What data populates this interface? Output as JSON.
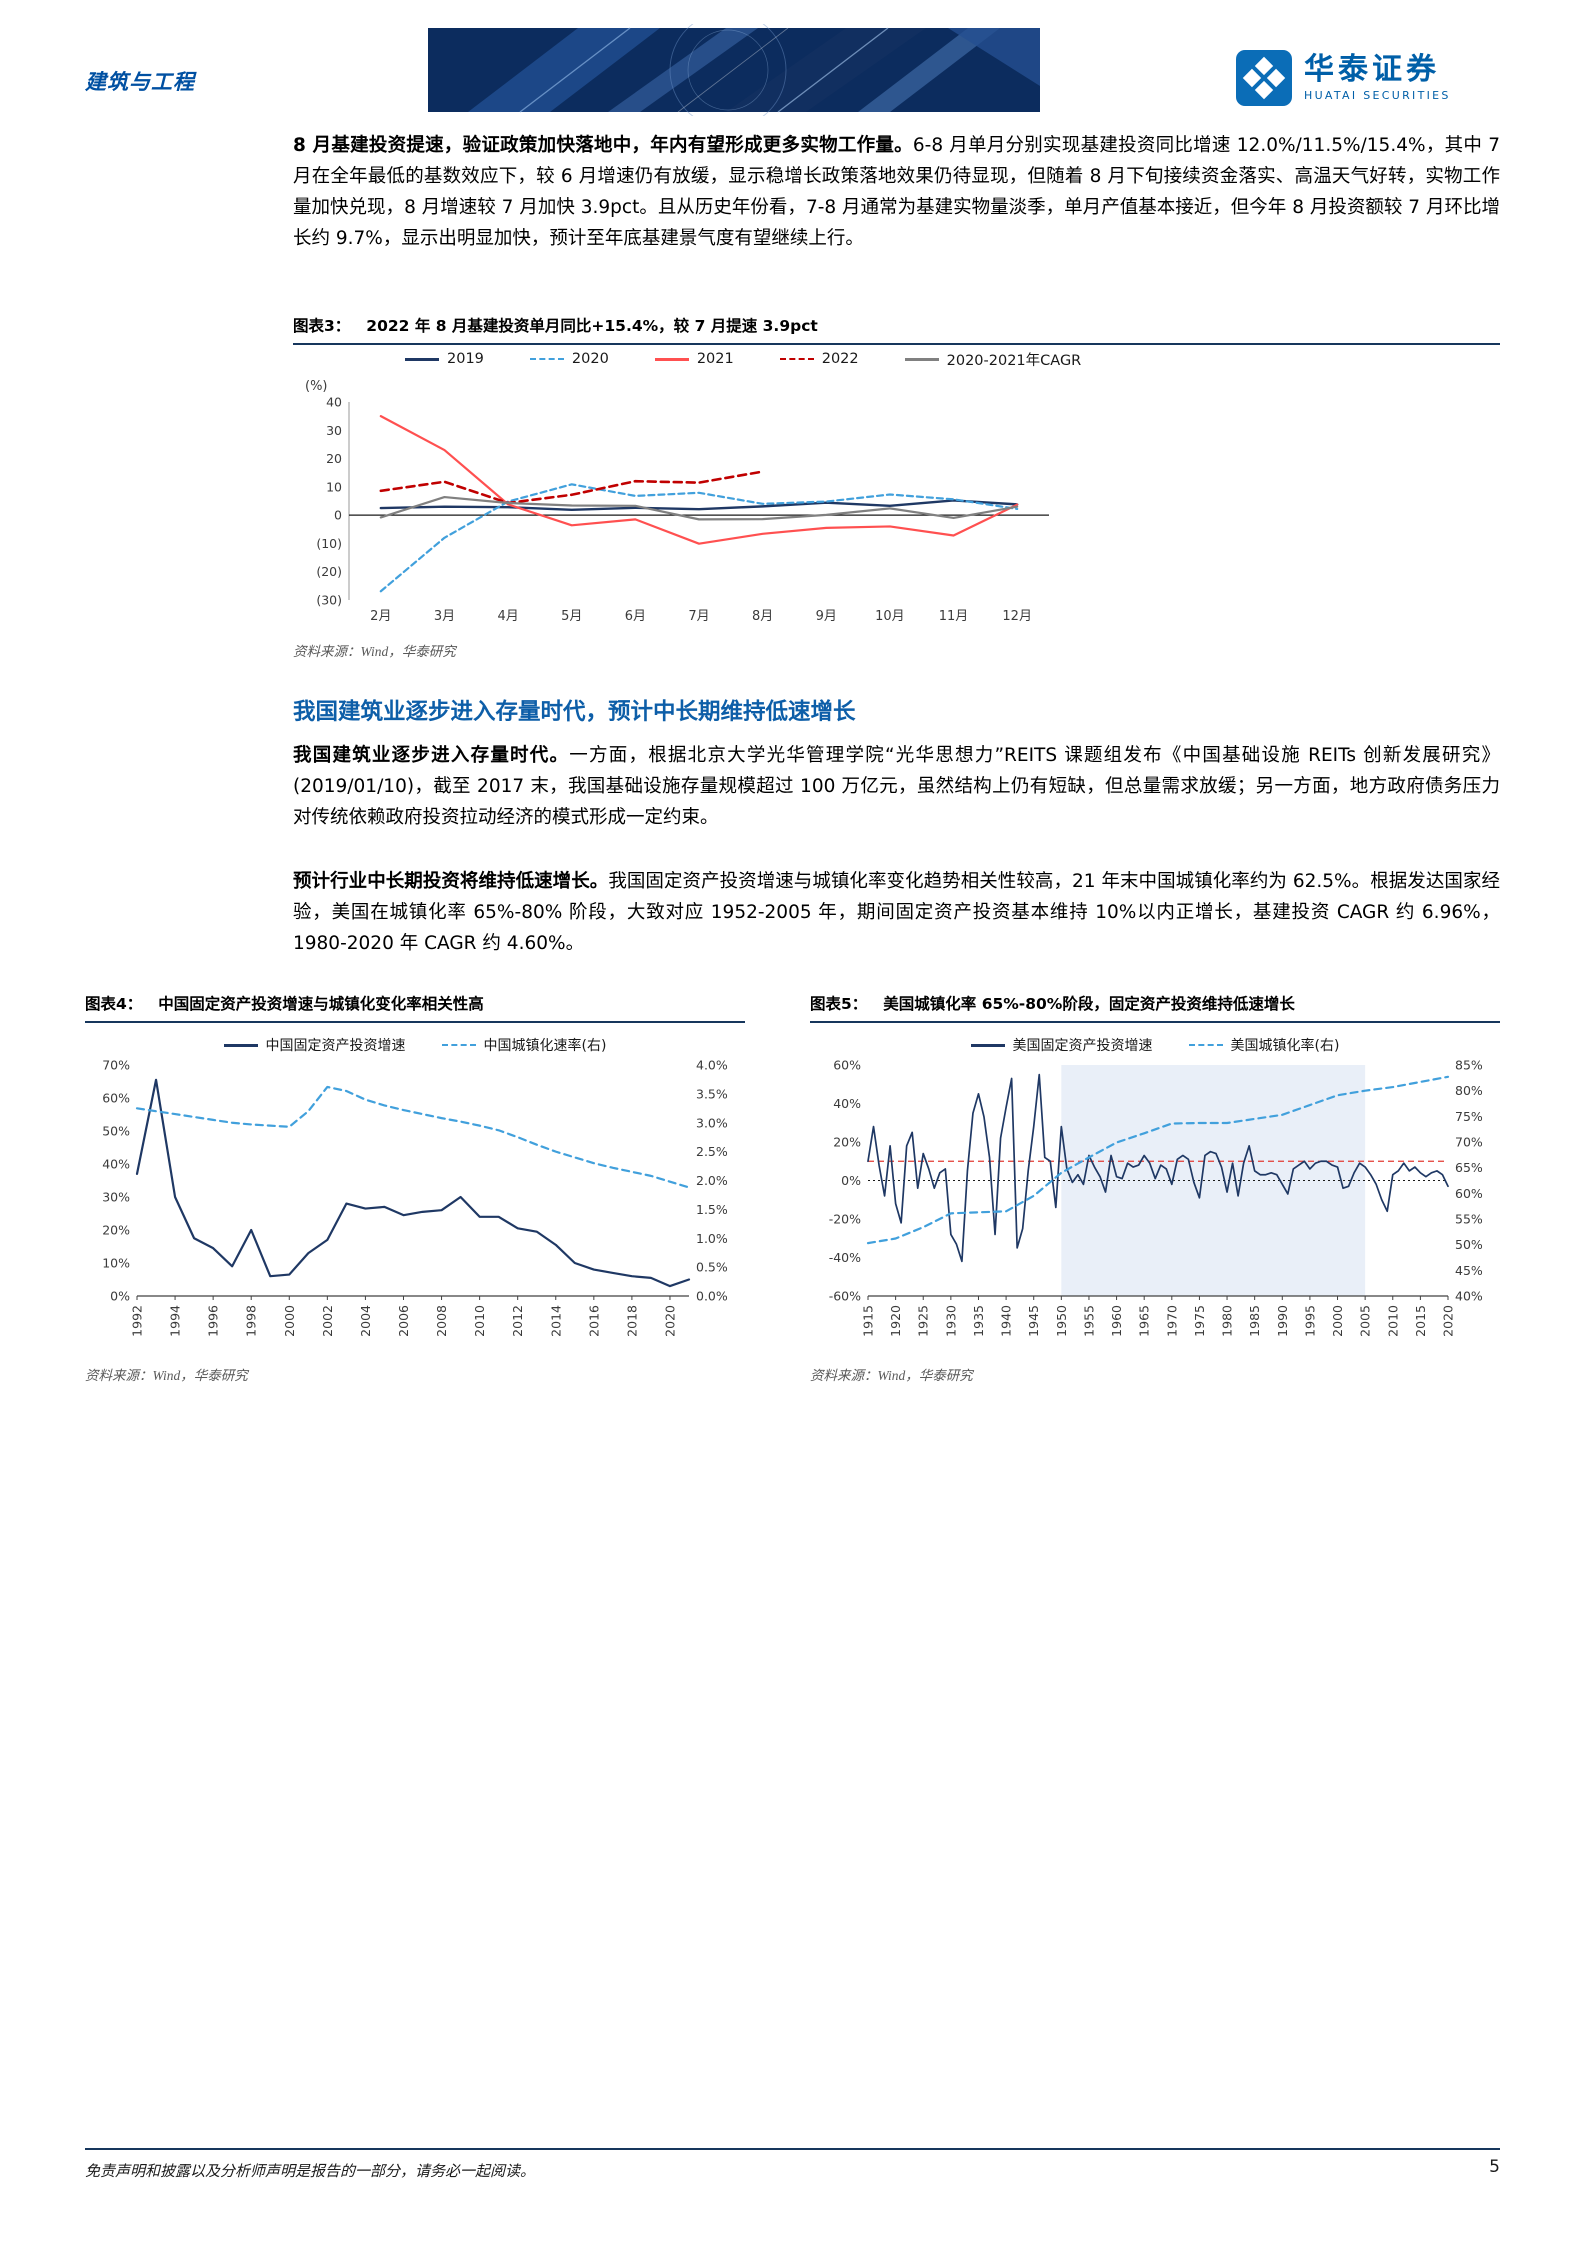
{
  "palette": {
    "brand_blue": "#005FA8",
    "heading_blue": "#0D5EA8",
    "rule_navy": "#16365C",
    "banner_navy": "#0C2C5E",
    "source_gray": "#595959"
  },
  "header": {
    "category": "建筑与工程",
    "brand": {
      "name_cn": "华泰证券",
      "name_en": "HUATAI SECURITIES"
    }
  },
  "paragraphs": {
    "p1_bold": "8 月基建投资提速，验证政策加快落地中，年内有望形成更多实物工作量。",
    "p1_rest": "6-8 月单月分别实现基建投资同比增速 12.0%/11.5%/15.4%，其中 7 月在全年最低的基数效应下，较 6 月增速仍有放缓，显示稳增长政策落地效果仍待显现，但随着 8 月下旬接续资金落实、高温天气好转，实物工作量加快兑现，8 月增速较 7 月加快 3.9pct。且从历史年份看，7-8 月通常为基建实物量淡季，单月产值基本接近，但今年 8 月投资额较 7 月环比增长约 9.7%，显示出明显加快，预计至年底基建景气度有望继续上行。",
    "section_heading": "我国建筑业逐步进入存量时代，预计中长期维持低速增长",
    "p2_bold": "我国建筑业逐步进入存量时代。",
    "p2_rest": "一方面，根据北京大学光华管理学院“光华思想力”REITS 课题组发布《中国基础设施 REITs 创新发展研究》(2019/01/10)，截至 2017 末，我国基础设施存量规模超过 100 万亿元，虽然结构上仍有短缺，但总量需求放缓；另一方面，地方政府债务压力对传统依赖政府投资拉动经济的模式形成一定约束。",
    "p3_bold": "预计行业中长期投资将维持低速增长。",
    "p3_rest": "我国固定资产投资增速与城镇化率变化趋势相关性较高，21 年末中国城镇化率约为 62.5%。根据发达国家经验，美国在城镇化率 65%-80% 阶段，大致对应 1952-2005 年，期间固定资产投资基本维持 10%以内正增长，基建投资 CAGR 约 6.96%，1980-2020 年 CAGR 约 4.60%。"
  },
  "figure3": {
    "label": "图表3：",
    "title": "2022 年 8 月基建投资单月同比+15.4%，较 7 月提速 3.9pct",
    "source": "资料来源：Wind，华泰研究"
  },
  "figure4": {
    "label": "图表4：",
    "title": "中国固定资产投资增速与城镇化变化率相关性高",
    "source": "资料来源：Wind，华泰研究"
  },
  "figure5": {
    "label": "图表5：",
    "title": "美国城镇化率 65%-80%阶段，固定资产投资维持低速增长",
    "source": "资料来源：Wind，华泰研究"
  },
  "footer": {
    "disclaimer": "免责声明和披露以及分析师声明是报告的一部分，请务必一起阅读。",
    "page": "5"
  },
  "chart_data": [
    {
      "id": "figure3-chart",
      "type": "line",
      "title": "2022年8月基建投资单月同比+15.4%，较7月提速3.9pct",
      "y_axis_label": "(%)",
      "legend_position": "top",
      "left_axis": {
        "min": -30,
        "max": 40,
        "ticks": [
          {
            "v": 40,
            "label": "40"
          },
          {
            "v": 30,
            "label": "30"
          },
          {
            "v": 20,
            "label": "20"
          },
          {
            "v": 10,
            "label": "10"
          },
          {
            "v": 0,
            "label": "0"
          },
          {
            "v": -10,
            "label": "(10)"
          },
          {
            "v": -20,
            "label": "(20)"
          },
          {
            "v": -30,
            "label": "(30)"
          }
        ]
      },
      "categories": [
        "2月",
        "3月",
        "4月",
        "5月",
        "6月",
        "7月",
        "8月",
        "9月",
        "10月",
        "11月",
        "12月"
      ],
      "series": [
        {
          "name": "2019",
          "color": "#1F3864",
          "dash": "solid",
          "width": 2.4,
          "values": [
            2.5,
            3.0,
            2.8,
            1.9,
            2.6,
            2.1,
            3.1,
            4.4,
            3.3,
            5.2,
            3.8
          ]
        },
        {
          "name": "2020",
          "color": "#41A0DC",
          "dash": "dashed",
          "dash_pattern": "6 4",
          "width": 2.2,
          "values": [
            -26.9,
            -8.0,
            4.8,
            10.9,
            6.8,
            7.9,
            4.0,
            4.8,
            7.3,
            5.6,
            2.2
          ]
        },
        {
          "name": "2021",
          "color": "#FF5050",
          "dash": "solid",
          "width": 2.2,
          "values": [
            35.0,
            23.0,
            3.8,
            -3.6,
            -1.5,
            -10.1,
            -6.6,
            -4.5,
            -4.0,
            -7.2,
            3.7
          ]
        },
        {
          "name": "2022",
          "color": "#C00000",
          "dash": "dashed",
          "dash_pattern": "8 5",
          "width": 2.6,
          "values": [
            8.6,
            11.8,
            4.3,
            7.2,
            12.0,
            11.5,
            15.4,
            null,
            null,
            null,
            null
          ]
        },
        {
          "name": "2020-2021年CAGR",
          "color": "#808080",
          "dash": "solid",
          "width": 2.2,
          "values": [
            -0.8,
            6.4,
            4.3,
            3.4,
            3.3,
            -1.5,
            -1.4,
            0.1,
            2.4,
            -1.0,
            3.0
          ]
        }
      ]
    },
    {
      "id": "figure4-chart",
      "type": "line",
      "x_min": 1992,
      "x_max": 2021,
      "x_ticks": [
        1992,
        1994,
        1996,
        1998,
        2000,
        2002,
        2004,
        2006,
        2008,
        2010,
        2012,
        2014,
        2016,
        2018,
        2020
      ],
      "left_axis": {
        "min": 0,
        "max": 70,
        "ticks": [
          {
            "v": 0,
            "label": "0%"
          },
          {
            "v": 10,
            "label": "10%"
          },
          {
            "v": 20,
            "label": "20%"
          },
          {
            "v": 30,
            "label": "30%"
          },
          {
            "v": 40,
            "label": "40%"
          },
          {
            "v": 50,
            "label": "50%"
          },
          {
            "v": 60,
            "label": "60%"
          },
          {
            "v": 70,
            "label": "70%"
          }
        ]
      },
      "right_axis": {
        "min": 0,
        "max": 4,
        "ticks": [
          {
            "v": 0,
            "label": "0.0%"
          },
          {
            "v": 0.5,
            "label": "0.5%"
          },
          {
            "v": 1,
            "label": "1.0%"
          },
          {
            "v": 1.5,
            "label": "1.5%"
          },
          {
            "v": 2,
            "label": "2.0%"
          },
          {
            "v": 2.5,
            "label": "2.5%"
          },
          {
            "v": 3,
            "label": "3.0%"
          },
          {
            "v": 3.5,
            "label": "3.5%"
          },
          {
            "v": 4,
            "label": "4.0%"
          }
        ]
      },
      "series": [
        {
          "name": "中国固定资产投资增速",
          "axis": "left",
          "color": "#1F3864",
          "dash": "solid",
          "width": 2.2,
          "values": [
            37,
            65.5,
            30,
            17.5,
            14.5,
            9,
            20,
            6,
            6.5,
            13,
            17,
            28,
            26.5,
            27,
            24.5,
            25.5,
            26,
            30,
            24,
            24,
            20.5,
            19.5,
            15.5,
            10,
            8,
            7,
            6,
            5.5,
            3,
            5
          ]
        },
        {
          "name": "中国城镇化速率(右)",
          "axis": "right",
          "color": "#41A0DC",
          "dash": "dashed",
          "dash_pattern": "7 5",
          "width": 2.2,
          "values": [
            3.25,
            3.2,
            3.15,
            3.1,
            3.05,
            3.0,
            2.97,
            2.95,
            2.93,
            3.2,
            3.62,
            3.55,
            3.4,
            3.3,
            3.22,
            3.15,
            3.08,
            3.02,
            2.95,
            2.87,
            2.75,
            2.62,
            2.5,
            2.4,
            2.3,
            2.22,
            2.15,
            2.08,
            1.98,
            1.88
          ]
        }
      ]
    },
    {
      "id": "figure5-chart",
      "type": "line",
      "x_min": 1915,
      "x_max": 2020,
      "x_ticks": [
        1915,
        1920,
        1925,
        1930,
        1935,
        1940,
        1945,
        1950,
        1955,
        1960,
        1965,
        1970,
        1975,
        1980,
        1985,
        1990,
        1995,
        2000,
        2005,
        2010,
        2015,
        2020
      ],
      "highlight_region": {
        "from": 1950,
        "to": 2005,
        "color": "#E9EFF8"
      },
      "reference_line": {
        "y": 10,
        "color": "#E23B33",
        "style": "dashed"
      },
      "left_axis": {
        "min": -60,
        "max": 60,
        "ticks": [
          {
            "v": -60,
            "label": "-60%"
          },
          {
            "v": -40,
            "label": "-40%"
          },
          {
            "v": -20,
            "label": "-20%"
          },
          {
            "v": 0,
            "label": "0%"
          },
          {
            "v": 20,
            "label": "20%"
          },
          {
            "v": 40,
            "label": "40%"
          },
          {
            "v": 60,
            "label": "60%"
          }
        ]
      },
      "right_axis": {
        "min": 40,
        "max": 85,
        "ticks": [
          {
            "v": 40,
            "label": "40%"
          },
          {
            "v": 45,
            "label": "45%"
          },
          {
            "v": 50,
            "label": "50%"
          },
          {
            "v": 55,
            "label": "55%"
          },
          {
            "v": 60,
            "label": "60%"
          },
          {
            "v": 65,
            "label": "65%"
          },
          {
            "v": 70,
            "label": "70%"
          },
          {
            "v": 75,
            "label": "75%"
          },
          {
            "v": 80,
            "label": "80%"
          },
          {
            "v": 85,
            "label": "85%"
          }
        ]
      },
      "series": [
        {
          "name": "美国固定资产投资增速",
          "axis": "left",
          "color": "#1F3864",
          "dash": "solid",
          "width": 1.7,
          "values": [
            10,
            28,
            8,
            -8,
            18,
            -12,
            -22,
            18,
            25,
            -4,
            14,
            6,
            -4,
            4,
            6,
            -28,
            -33,
            -42,
            5,
            35,
            45,
            33,
            12,
            -28,
            22,
            38,
            53,
            -35,
            -25,
            5,
            28,
            55,
            12,
            10,
            -14,
            28,
            6,
            -1,
            3,
            -2,
            13,
            7,
            2,
            -6,
            13,
            2,
            1,
            9,
            7,
            8,
            13,
            9,
            1,
            8,
            6,
            -2,
            11,
            13,
            11,
            -1,
            -9,
            13,
            15,
            14,
            7,
            -6,
            9,
            -8,
            9,
            18,
            5,
            3,
            3,
            4,
            3,
            -2,
            -7,
            6,
            8,
            10,
            6,
            9,
            10,
            10,
            8,
            7,
            -4,
            -3,
            4,
            9,
            7,
            3,
            -2,
            -10,
            -16,
            3,
            5,
            9,
            5,
            7,
            4,
            2,
            4,
            5,
            3,
            -3
          ]
        },
        {
          "name": "美国城镇化率(右)",
          "axis": "right",
          "color": "#41A0DC",
          "dash": "dashed",
          "dash_pattern": "7 5",
          "width": 2.2,
          "points": [
            [
              1915,
              50.3
            ],
            [
              1920,
              51.2
            ],
            [
              1925,
              53.4
            ],
            [
              1930,
              56.1
            ],
            [
              1935,
              56.3
            ],
            [
              1940,
              56.5
            ],
            [
              1945,
              59.5
            ],
            [
              1950,
              64.0
            ],
            [
              1955,
              67.0
            ],
            [
              1960,
              69.9
            ],
            [
              1965,
              71.7
            ],
            [
              1970,
              73.6
            ],
            [
              1975,
              73.7
            ],
            [
              1980,
              73.7
            ],
            [
              1985,
              74.5
            ],
            [
              1990,
              75.3
            ],
            [
              1995,
              77.2
            ],
            [
              2000,
              79.1
            ],
            [
              2005,
              80.0
            ],
            [
              2010,
              80.7
            ],
            [
              2015,
              81.7
            ],
            [
              2020,
              82.7
            ]
          ]
        }
      ]
    }
  ]
}
